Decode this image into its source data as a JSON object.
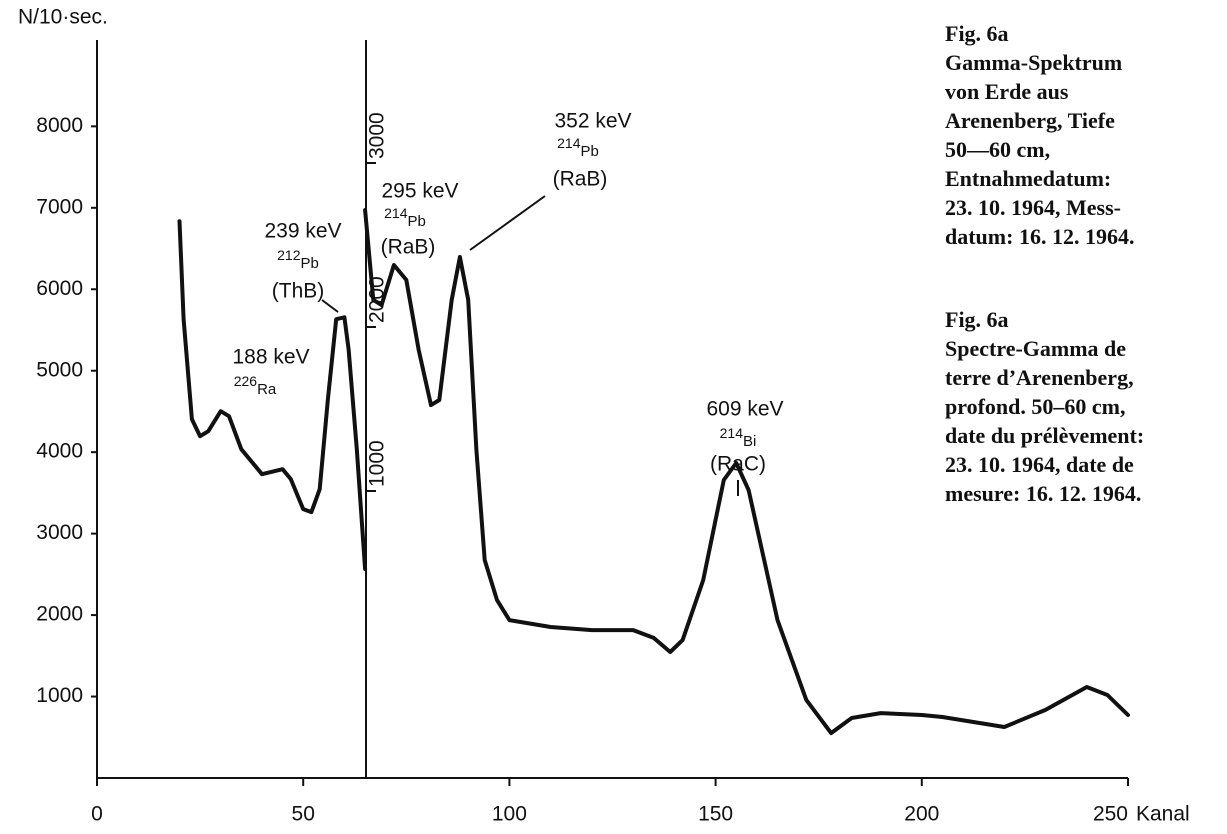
{
  "chart_data": {
    "type": "line",
    "y_label": "N/10·sec.",
    "x_label": "Kanal",
    "xlim": [
      0,
      250
    ],
    "xticks": [
      0,
      50,
      100,
      150,
      200,
      250
    ],
    "ylim": [
      0,
      9060
    ],
    "yticks": [
      1000,
      2000,
      3000,
      4000,
      5000,
      6000,
      7000,
      8000
    ],
    "y2lim": [
      -750,
      3750
    ],
    "y2ticks": [
      1000,
      2000,
      3000
    ],
    "series": [
      {
        "color": "#111111",
        "x": [
          20,
          21,
          23,
          25,
          27,
          30,
          32,
          35,
          40,
          43,
          45,
          47,
          50,
          52,
          54,
          56,
          58,
          60,
          61,
          63,
          65
        ],
        "values": [
          6834,
          5632,
          4405,
          4196,
          4258,
          4503,
          4442,
          4037,
          3730,
          3767,
          3791,
          3669,
          3301,
          3264,
          3546,
          4650,
          5632,
          5656,
          5264,
          4037,
          2564
        ]
      },
      {
        "color": "#111111",
        "axis": "y2",
        "x": [
          65,
          67,
          69,
          72,
          75,
          78,
          81,
          83,
          86,
          88,
          90,
          92,
          94,
          97,
          100,
          110,
          120,
          130,
          135,
          139,
          142,
          147,
          152,
          155,
          158,
          165,
          172,
          178,
          183,
          190,
          200,
          205,
          220,
          230,
          240,
          245,
          250
        ],
        "values": [
          2713,
          2165,
          2134,
          2378,
          2287,
          1860,
          1524,
          1555,
          2165,
          2427,
          2165,
          1250,
          579,
          335,
          213,
          171,
          152,
          152,
          104,
          18,
          91,
          457,
          1067,
          1171,
          1006,
          213,
          -274,
          -476,
          -384,
          -354,
          -366,
          -378,
          -439,
          -335,
          -195,
          -244,
          -366
        ]
      }
    ],
    "annotations": [
      {
        "energy": "188 keV",
        "mass": "226",
        "element": "Ra"
      },
      {
        "energy": "239 keV",
        "mass": "212",
        "element": "Pb",
        "parent": "(ThB)"
      },
      {
        "energy": "295 keV",
        "mass": "214",
        "element": "Pb",
        "parent": "(RaB)"
      },
      {
        "energy": "352 keV",
        "mass": "214",
        "element": "Pb",
        "parent": "(RaB)"
      },
      {
        "energy": "609 keV",
        "mass": "214",
        "element": "Bi",
        "parent": "(RaC)"
      }
    ]
  },
  "caption_de": [
    "Fig. 6a",
    "Gamma-Spektrum",
    "von Erde aus",
    "Arenenberg, Tiefe",
    "50—60 cm,",
    "Entnahmedatum:",
    "23. 10. 1964, Mess-",
    "datum: 16. 12. 1964."
  ],
  "caption_fr": [
    "Fig. 6a",
    "Spectre-Gamma de",
    "terre d’Arenenberg,",
    "profond. 50–60 cm,",
    "date du prélèvement:",
    "23. 10. 1964, date de",
    "mesure: 16. 12. 1964."
  ]
}
